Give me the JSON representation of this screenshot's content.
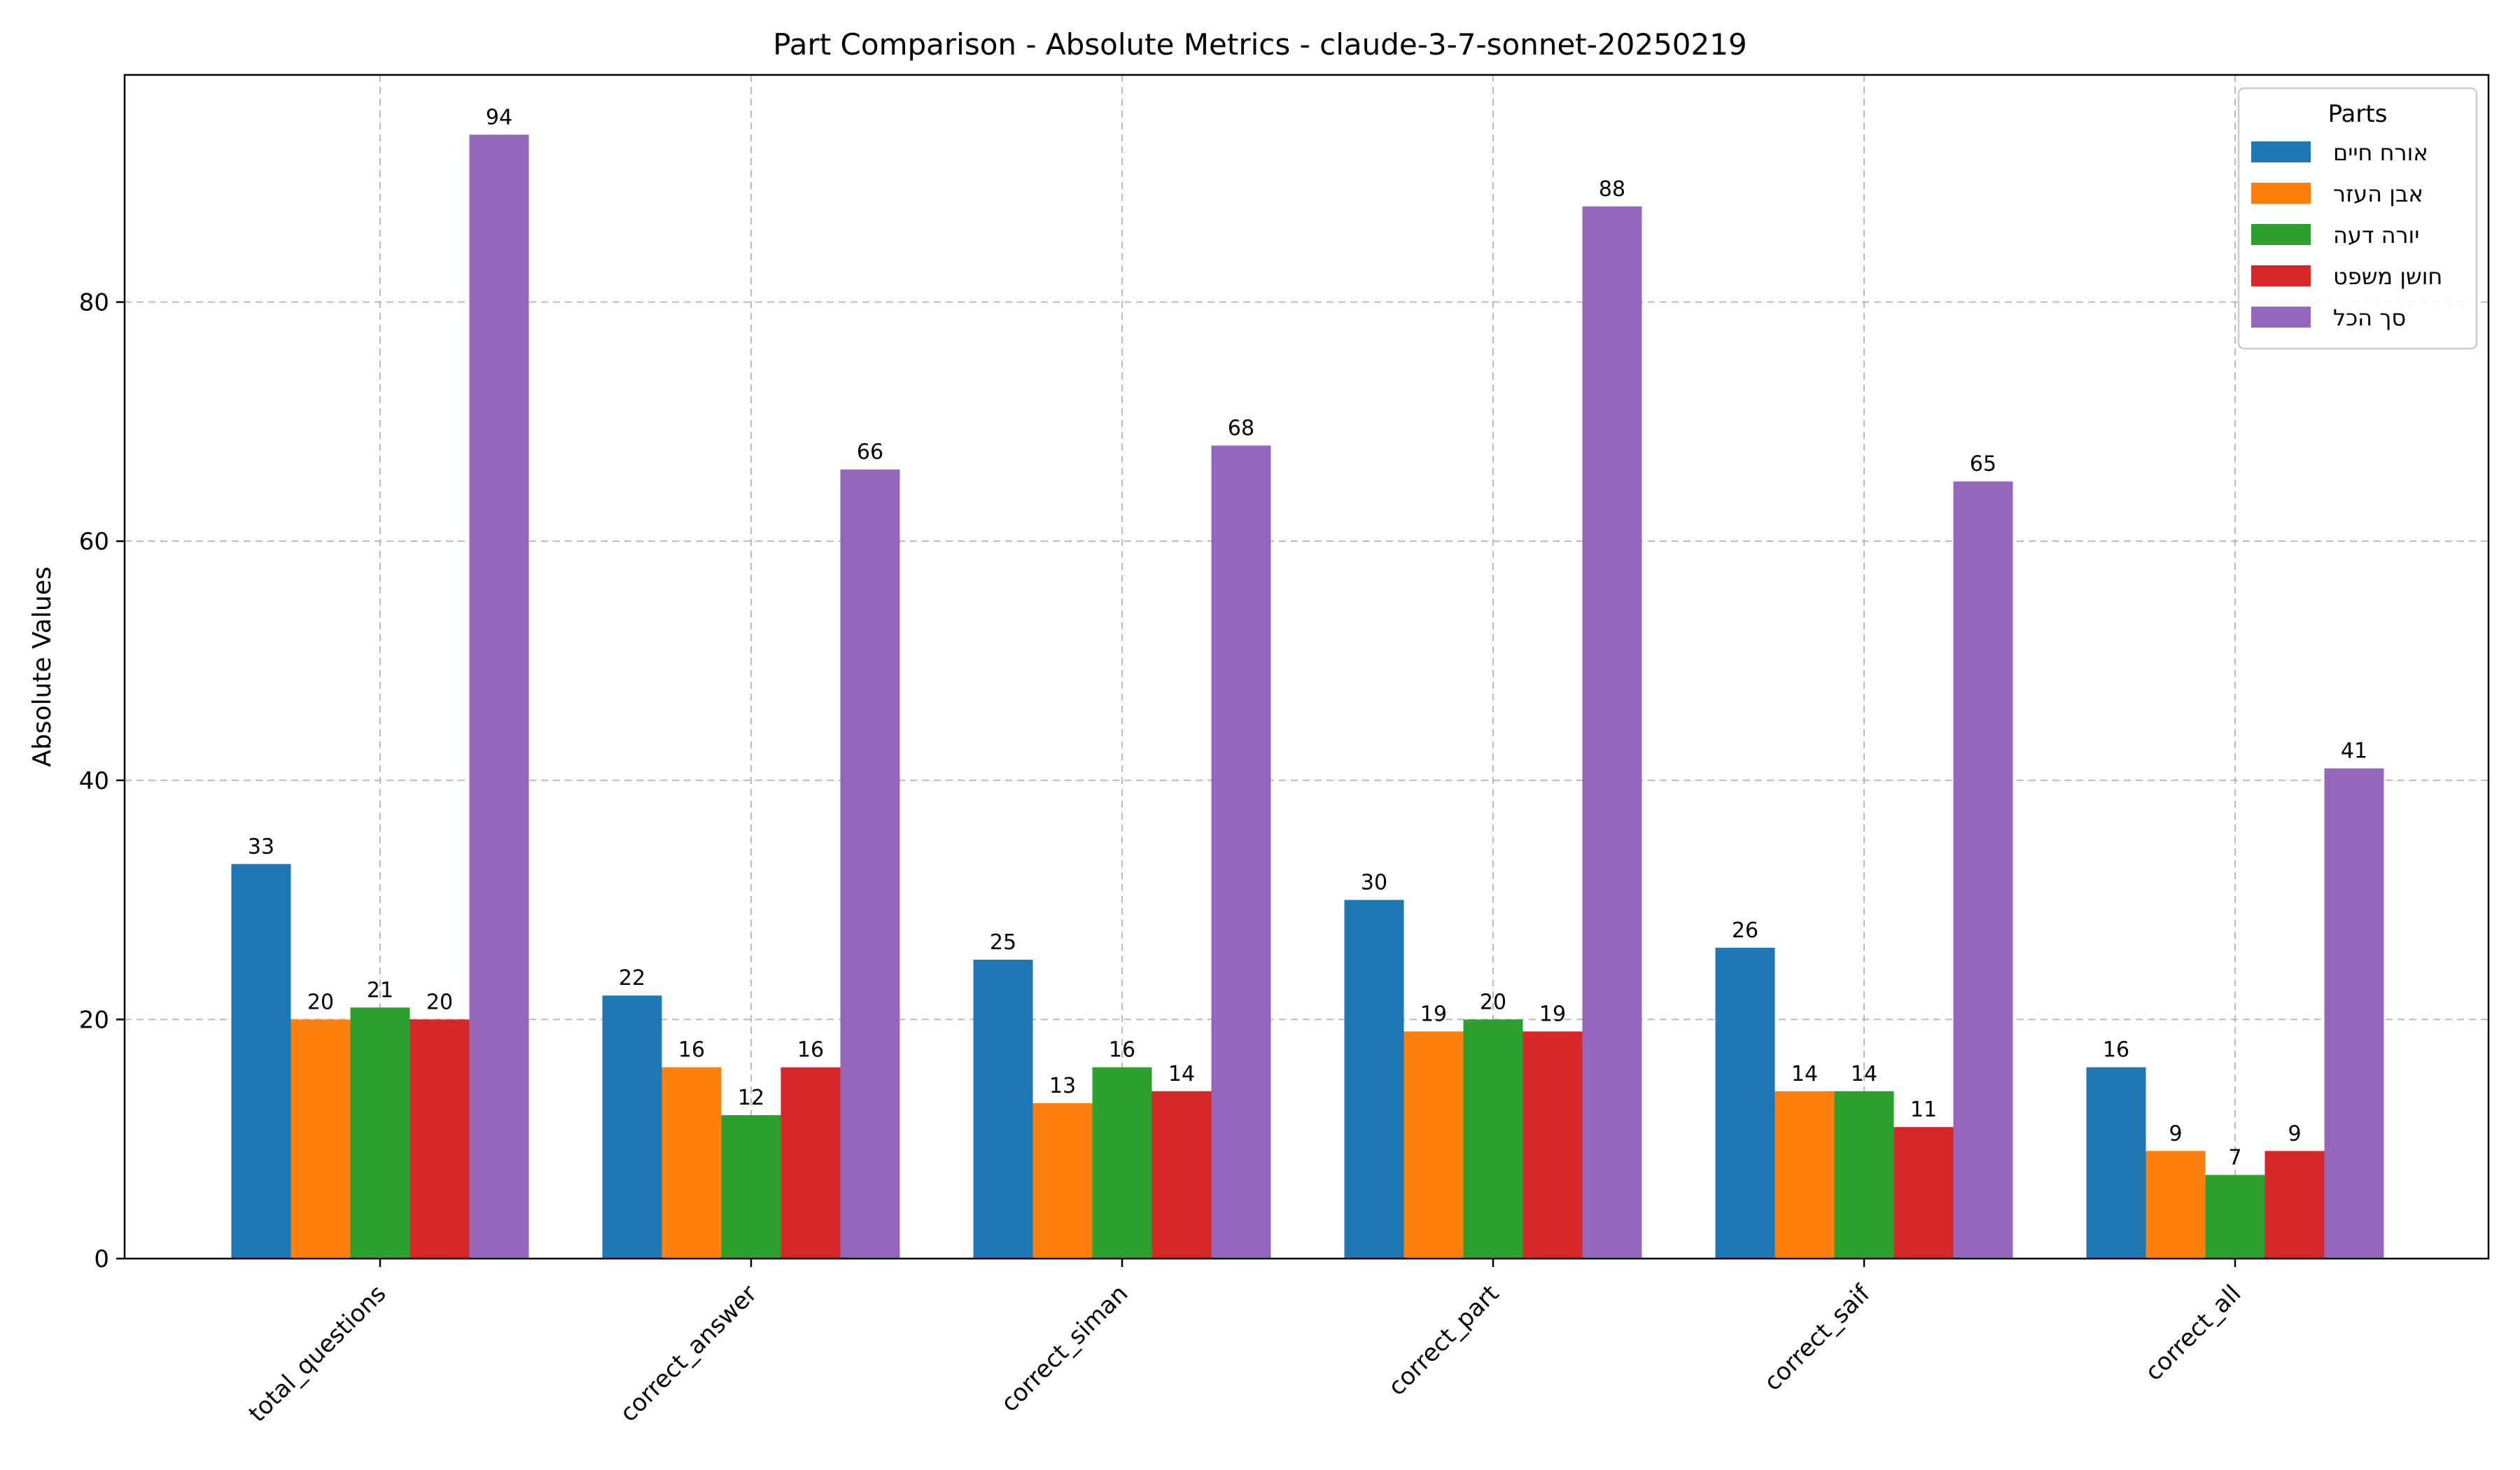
{
  "chart_data": {
    "type": "bar",
    "title": "Part Comparison - Absolute Metrics - claude-3-7-sonnet-20250219",
    "xlabel": "",
    "ylabel": "Absolute Values",
    "ylim": [
      0,
      99
    ],
    "yticks": [
      0,
      20,
      40,
      60,
      80
    ],
    "grid": true,
    "legend_title": "Parts",
    "legend_position": "top-right",
    "categories": [
      "total_questions",
      "correct_answer",
      "correct_siman",
      "correct_part",
      "correct_saif",
      "correct_all"
    ],
    "series": [
      {
        "name": "אורח חיים",
        "color": "#1f77b4",
        "values": [
          33,
          22,
          25,
          30,
          26,
          16
        ]
      },
      {
        "name": "אבן העזר",
        "color": "#ff7f0e",
        "values": [
          20,
          16,
          13,
          19,
          14,
          9
        ]
      },
      {
        "name": "יורה דעה",
        "color": "#2ca02c",
        "values": [
          21,
          12,
          16,
          20,
          14,
          7
        ]
      },
      {
        "name": "חושן משפט",
        "color": "#d62728",
        "values": [
          20,
          16,
          14,
          19,
          11,
          9
        ]
      },
      {
        "name": "סך הכל",
        "color": "#9467bd",
        "values": [
          94,
          66,
          68,
          88,
          65,
          41
        ]
      }
    ]
  }
}
